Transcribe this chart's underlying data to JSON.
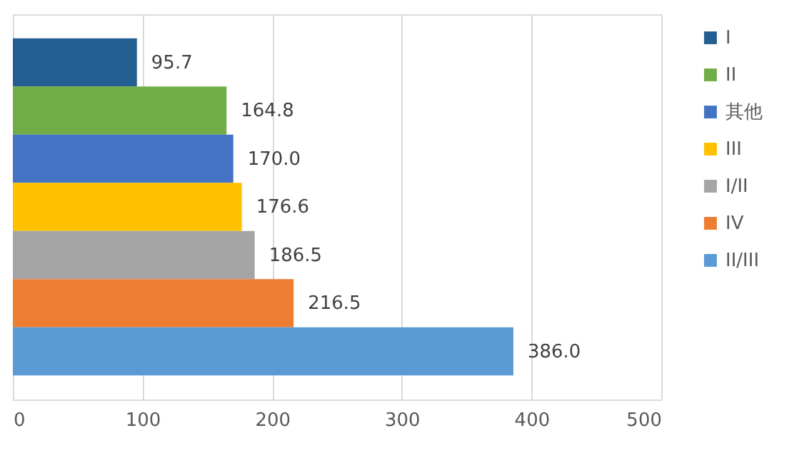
{
  "chart_data": {
    "type": "bar",
    "orientation": "horizontal",
    "categories": [
      null,
      null,
      null,
      null,
      null,
      null,
      null
    ],
    "series": [
      {
        "name": "I",
        "color": "#255e91",
        "values": [
          95.7,
          null,
          null,
          null,
          null,
          null,
          null
        ],
        "value_labels": [
          "95.7",
          null,
          null,
          null,
          null,
          null,
          null
        ]
      },
      {
        "name": "II",
        "color": "#70ad47",
        "values": [
          null,
          164.8,
          null,
          null,
          null,
          null,
          null
        ],
        "value_labels": [
          null,
          "164.8",
          null,
          null,
          null,
          null,
          null
        ]
      },
      {
        "name": "其他",
        "color": "#4472c4",
        "values": [
          null,
          null,
          170.0,
          null,
          null,
          null,
          null
        ],
        "value_labels": [
          null,
          null,
          "170.0",
          null,
          null,
          null,
          null
        ]
      },
      {
        "name": "III",
        "color": "#ffc000",
        "values": [
          null,
          null,
          null,
          176.6,
          null,
          null,
          null
        ],
        "value_labels": [
          null,
          null,
          null,
          "176.6",
          null,
          null,
          null
        ]
      },
      {
        "name": "I/II",
        "color": "#a5a5a5",
        "values": [
          null,
          null,
          null,
          null,
          186.5,
          null,
          null
        ],
        "value_labels": [
          null,
          null,
          null,
          null,
          "186.5",
          null,
          null
        ]
      },
      {
        "name": "IV",
        "color": "#ed7d31",
        "values": [
          null,
          null,
          null,
          null,
          null,
          216.5,
          null
        ],
        "value_labels": [
          null,
          null,
          null,
          null,
          null,
          "216.5",
          null
        ]
      },
      {
        "name": "II/III",
        "color": "#5b9bd5",
        "values": [
          null,
          null,
          null,
          null,
          null,
          null,
          386.0
        ],
        "value_labels": [
          null,
          null,
          null,
          null,
          null,
          null,
          "386.0"
        ]
      }
    ],
    "xlim": [
      0,
      500
    ],
    "xticks": [
      0,
      100,
      200,
      300,
      400,
      500
    ],
    "grid": "x",
    "legend": "right",
    "tick_labels": "x"
  }
}
